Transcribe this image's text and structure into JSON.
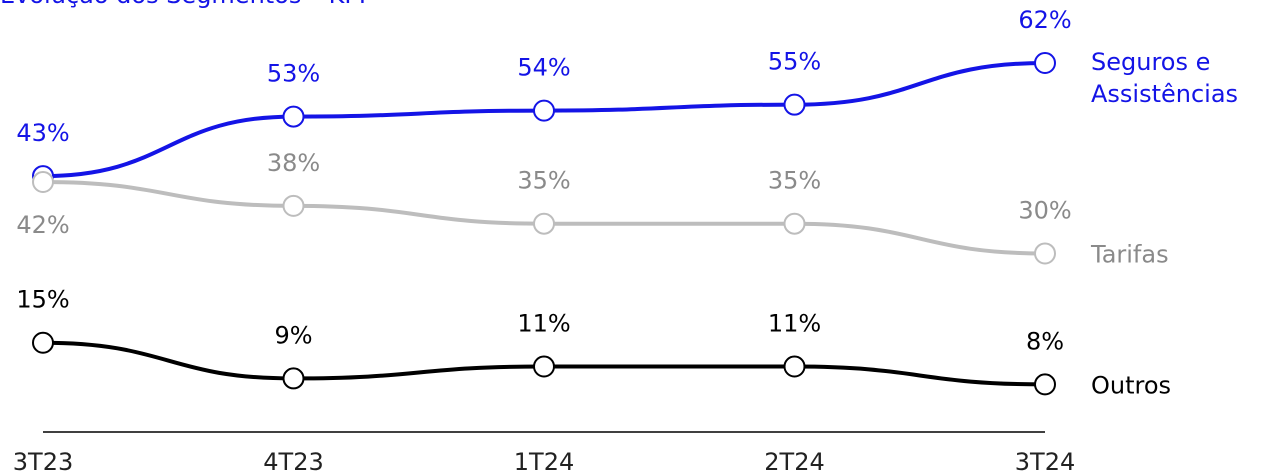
{
  "chart_data": {
    "type": "line",
    "title": "Evolução dos Segmentos – KPI",
    "categories": [
      "3T23",
      "4T23",
      "1T24",
      "2T24",
      "3T24"
    ],
    "ylim": [
      0,
      62
    ],
    "series": [
      {
        "name": "Seguros e Assistências",
        "color": "#1414e6",
        "values": [
          43,
          53,
          54,
          55,
          62
        ],
        "value_labels": [
          "43%",
          "53%",
          "54%",
          "55%",
          "62%"
        ]
      },
      {
        "name": "Tarifas",
        "color": "#bdbdbd",
        "values": [
          42,
          38,
          35,
          35,
          30
        ],
        "value_labels": [
          "42%",
          "38%",
          "35%",
          "35%",
          "30%"
        ]
      },
      {
        "name": "Outros",
        "color": "#000000",
        "values": [
          15,
          9,
          11,
          11,
          8
        ],
        "value_labels": [
          "15%",
          "9%",
          "11%",
          "11%",
          "8%"
        ]
      }
    ]
  }
}
